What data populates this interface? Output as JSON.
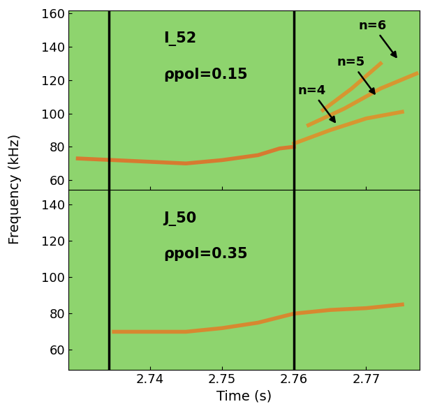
{
  "ylabel": "Frequency (kHz)",
  "chart_data": [
    {
      "type": "line",
      "title_text": "I_52",
      "subtitle": "ρpol=0.15",
      "tick_labels": "y",
      "xlim": [
        2.7287,
        2.7774
      ],
      "xticks": [
        2.74,
        2.75,
        2.76,
        2.77
      ],
      "ylim": [
        54,
        162
      ],
      "yticks": [
        60,
        80,
        100,
        120,
        140,
        160
      ],
      "vlines": [
        2.7343,
        2.76
      ],
      "series": [
        {
          "color": "#e0702a",
          "x": [
            2.73,
            2.735,
            2.74,
            2.745,
            2.75,
            2.755,
            2.758,
            2.76
          ],
          "values": [
            73,
            72,
            71,
            70,
            72,
            75,
            79,
            80
          ]
        },
        {
          "color": "#e0902a",
          "x": [
            2.76,
            2.765,
            2.77,
            2.775
          ],
          "values": [
            82,
            90,
            97,
            101
          ]
        },
        {
          "color": "#e0902a",
          "x": [
            2.762,
            2.767,
            2.772,
            2.777
          ],
          "values": [
            93,
            103,
            115,
            124
          ]
        },
        {
          "color": "#e0902a",
          "x": [
            2.764,
            2.768,
            2.772
          ],
          "values": [
            102,
            115,
            130
          ]
        }
      ],
      "annotations": [
        {
          "text": "n=4",
          "x": 2.766,
          "y": 93
        },
        {
          "text": "n=5",
          "x": 2.7715,
          "y": 110
        },
        {
          "text": "n=6",
          "x": 2.7745,
          "y": 132
        }
      ]
    },
    {
      "type": "line",
      "title_text": "J_50",
      "subtitle": "ρpol=0.35",
      "xlabel": "Time (s)",
      "xlim": [
        2.7287,
        2.7774
      ],
      "xticks": [
        2.74,
        2.75,
        2.76,
        2.77
      ],
      "ylim": [
        49,
        148
      ],
      "yticks": [
        60,
        80,
        100,
        120,
        140
      ],
      "vlines": [
        2.7343,
        2.76
      ],
      "series": [
        {
          "color": "#e0802a",
          "x": [
            2.735,
            2.74,
            2.745,
            2.75,
            2.755,
            2.76,
            2.765,
            2.77,
            2.775
          ],
          "values": [
            70,
            70,
            70,
            72,
            75,
            80,
            82,
            83,
            85
          ]
        }
      ]
    }
  ]
}
